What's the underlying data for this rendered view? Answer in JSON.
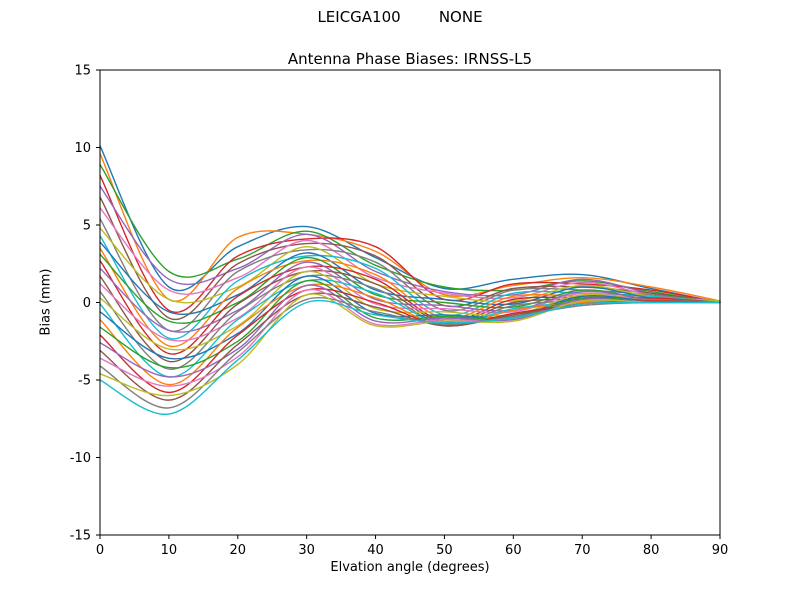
{
  "figure": {
    "suptitle": "LEICGA100        NONE",
    "title": "Antenna Phase Biases: IRNSS-L5",
    "xlabel": "Elvation angle (degrees)",
    "ylabel": "Bias (mm)"
  },
  "chart_data": {
    "type": "line",
    "title": "Antenna Phase Biases: IRNSS-L5",
    "suptitle": "LEICGA100        NONE",
    "xlabel": "Elvation angle (degrees)",
    "ylabel": "Bias (mm)",
    "xlim": [
      0,
      90
    ],
    "ylim": [
      -15,
      15
    ],
    "x_ticks": [
      0,
      10,
      20,
      30,
      40,
      50,
      60,
      70,
      80,
      90
    ],
    "y_ticks": [
      -15,
      -10,
      -5,
      0,
      5,
      10,
      15
    ],
    "grid": false,
    "legend": "none",
    "x": [
      0,
      10,
      20,
      30,
      40,
      50,
      60,
      70,
      80,
      90
    ],
    "series": [
      {
        "color": "#1f77b4",
        "values": [
          10.1,
          1.0,
          3.6,
          4.9,
          2.9,
          0.9,
          1.5,
          1.8,
          0.9,
          0.0
        ]
      },
      {
        "color": "#ff7f0e",
        "values": [
          9.6,
          0.2,
          4.2,
          4.4,
          3.3,
          0.5,
          1.1,
          1.6,
          1.0,
          0.1
        ]
      },
      {
        "color": "#2ca02c",
        "values": [
          8.9,
          2.0,
          2.8,
          4.6,
          2.4,
          1.0,
          0.8,
          1.4,
          0.7,
          0.0
        ]
      },
      {
        "color": "#d62728",
        "values": [
          8.2,
          -0.5,
          3.0,
          4.1,
          3.6,
          0.2,
          1.2,
          1.2,
          0.8,
          0.0
        ]
      },
      {
        "color": "#9467bd",
        "values": [
          7.5,
          1.5,
          2.2,
          4.4,
          2.0,
          0.7,
          0.5,
          1.5,
          0.6,
          0.1
        ]
      },
      {
        "color": "#8c564b",
        "values": [
          6.8,
          -1.0,
          2.5,
          3.8,
          3.0,
          -0.2,
          0.9,
          1.0,
          0.6,
          0.0
        ]
      },
      {
        "color": "#e377c2",
        "values": [
          6.1,
          0.8,
          1.6,
          4.0,
          1.6,
          0.6,
          0.3,
          1.3,
          0.5,
          0.0
        ]
      },
      {
        "color": "#7f7f7f",
        "values": [
          5.4,
          -1.8,
          2.0,
          3.4,
          2.6,
          -0.5,
          0.8,
          0.8,
          0.5,
          0.0
        ]
      },
      {
        "color": "#bcbd22",
        "values": [
          4.8,
          0.2,
          1.0,
          3.6,
          1.2,
          0.4,
          0.1,
          1.1,
          0.4,
          0.1
        ]
      },
      {
        "color": "#17becf",
        "values": [
          4.3,
          -2.3,
          1.4,
          3.0,
          2.2,
          -0.8,
          0.6,
          0.6,
          0.4,
          0.0
        ]
      },
      {
        "color": "#1f77b4",
        "values": [
          3.9,
          -0.6,
          0.5,
          3.2,
          0.8,
          0.2,
          -0.1,
          1.0,
          0.3,
          0.0
        ]
      },
      {
        "color": "#ff7f0e",
        "values": [
          3.5,
          -2.8,
          0.9,
          2.7,
          1.8,
          -1.0,
          0.4,
          0.4,
          0.3,
          0.0
        ]
      },
      {
        "color": "#2ca02c",
        "values": [
          3.1,
          -1.2,
          0.0,
          2.9,
          0.5,
          0.0,
          -0.3,
          0.8,
          0.2,
          0.0
        ]
      },
      {
        "color": "#d62728",
        "values": [
          2.7,
          -3.3,
          0.4,
          2.3,
          1.5,
          -1.2,
          0.2,
          0.3,
          0.3,
          0.0
        ]
      },
      {
        "color": "#9467bd",
        "values": [
          2.2,
          -1.8,
          -0.5,
          2.6,
          0.2,
          -0.2,
          -0.5,
          0.7,
          0.2,
          0.0
        ]
      },
      {
        "color": "#8c564b",
        "values": [
          1.7,
          -3.8,
          -0.1,
          2.0,
          1.2,
          -1.3,
          0.0,
          0.2,
          0.2,
          0.0
        ]
      },
      {
        "color": "#e377c2",
        "values": [
          1.2,
          -2.4,
          -1.0,
          2.3,
          -0.1,
          -0.4,
          -0.6,
          0.6,
          0.1,
          0.0
        ]
      },
      {
        "color": "#7f7f7f",
        "values": [
          0.7,
          -4.3,
          -0.6,
          1.7,
          0.9,
          -1.4,
          -0.2,
          0.1,
          0.2,
          0.0
        ]
      },
      {
        "color": "#bcbd22",
        "values": [
          0.3,
          -3.0,
          -1.5,
          2.0,
          -0.4,
          -0.6,
          -0.8,
          0.5,
          0.1,
          0.0
        ]
      },
      {
        "color": "#17becf",
        "values": [
          -0.1,
          -4.8,
          -1.1,
          1.4,
          0.6,
          -1.4,
          -0.4,
          0.0,
          0.1,
          0.0
        ]
      },
      {
        "color": "#1f77b4",
        "values": [
          -0.6,
          -3.6,
          -2.0,
          1.7,
          -0.7,
          -0.8,
          -0.9,
          0.4,
          0.1,
          0.0
        ]
      },
      {
        "color": "#ff7f0e",
        "values": [
          -1.1,
          -5.3,
          -1.6,
          1.1,
          0.3,
          -1.5,
          -0.5,
          0.0,
          0.1,
          0.0
        ]
      },
      {
        "color": "#2ca02c",
        "values": [
          -1.6,
          -4.2,
          -2.5,
          1.4,
          -1.0,
          -0.9,
          -1.0,
          0.3,
          0.0,
          0.0
        ]
      },
      {
        "color": "#d62728",
        "values": [
          -2.1,
          -5.8,
          -2.1,
          0.8,
          0.0,
          -1.5,
          -0.7,
          -0.1,
          0.1,
          0.0
        ]
      },
      {
        "color": "#9467bd",
        "values": [
          -2.6,
          -4.8,
          -3.0,
          1.1,
          -1.2,
          -1.0,
          -1.1,
          0.2,
          0.0,
          0.0
        ]
      },
      {
        "color": "#8c564b",
        "values": [
          -3.1,
          -6.3,
          -2.7,
          0.5,
          -0.3,
          -1.5,
          -0.8,
          -0.1,
          0.0,
          0.0
        ]
      },
      {
        "color": "#e377c2",
        "values": [
          -3.6,
          -5.4,
          -3.5,
          0.8,
          -1.4,
          -1.1,
          -1.2,
          0.1,
          0.0,
          0.0
        ]
      },
      {
        "color": "#7f7f7f",
        "values": [
          -4.1,
          -6.8,
          -3.2,
          0.2,
          -0.6,
          -1.4,
          -0.9,
          -0.2,
          0.0,
          0.0
        ]
      },
      {
        "color": "#bcbd22",
        "values": [
          -4.6,
          -6.0,
          -4.0,
          0.5,
          -1.5,
          -1.2,
          -1.2,
          0.1,
          0.0,
          0.0
        ]
      },
      {
        "color": "#17becf",
        "values": [
          -5.0,
          -7.2,
          -3.7,
          0.0,
          -0.8,
          -1.3,
          -1.0,
          -0.1,
          0.0,
          0.0
        ]
      }
    ]
  }
}
